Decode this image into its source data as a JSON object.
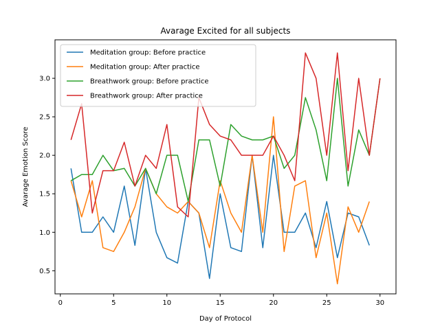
{
  "chart_data": {
    "type": "line",
    "title": "Avarage Excited for all subjects",
    "xlabel": "Day of Protocol",
    "ylabel": "Avarage Emotion Score",
    "xlim": [
      -0.5,
      31.5
    ],
    "ylim": [
      0.2,
      3.5
    ],
    "xticks": [
      0,
      5,
      10,
      15,
      20,
      25,
      30
    ],
    "yticks": [
      0.5,
      1.0,
      1.5,
      2.0,
      2.5,
      3.0
    ],
    "xtick_labels": [
      "0",
      "5",
      "10",
      "15",
      "20",
      "25",
      "30"
    ],
    "ytick_labels": [
      "0.5",
      "1.0",
      "1.5",
      "2.0",
      "2.5",
      "3.0"
    ],
    "grid": false,
    "legend_position": "top-left",
    "series": [
      {
        "name": "Meditation group: Before practice",
        "color": "#1f77b4",
        "x": [
          1,
          2,
          3,
          4,
          5,
          6,
          7,
          8,
          9,
          10,
          11,
          12,
          13,
          14,
          15,
          16,
          17,
          18,
          19,
          20,
          21,
          22,
          23,
          24,
          25,
          26,
          27,
          28,
          29
        ],
        "values": [
          1.83,
          1.0,
          1.0,
          1.2,
          1.0,
          1.6,
          0.83,
          1.83,
          1.0,
          0.67,
          0.6,
          1.4,
          1.25,
          0.4,
          1.5,
          0.8,
          0.75,
          2.0,
          0.8,
          2.0,
          1.0,
          1.0,
          1.25,
          0.8,
          1.4,
          0.67,
          1.25,
          1.2,
          0.83
        ]
      },
      {
        "name": "Meditation group: After practice",
        "color": "#ff7f0e",
        "x": [
          1,
          2,
          3,
          4,
          5,
          6,
          7,
          8,
          9,
          10,
          11,
          12,
          13,
          14,
          15,
          16,
          17,
          18,
          19,
          20,
          21,
          22,
          23,
          24,
          25,
          26,
          27,
          28,
          29
        ],
        "values": [
          1.67,
          1.2,
          1.67,
          0.8,
          0.75,
          1.0,
          1.33,
          1.83,
          1.5,
          1.33,
          1.25,
          1.4,
          1.25,
          0.8,
          1.67,
          1.25,
          1.0,
          2.0,
          1.0,
          2.5,
          0.75,
          1.6,
          1.67,
          0.67,
          1.25,
          0.33,
          1.33,
          1.0,
          1.4
        ]
      },
      {
        "name": "Breathwork group: Before practice",
        "color": "#2ca02c",
        "x": [
          1,
          2,
          3,
          4,
          5,
          6,
          7,
          8,
          9,
          10,
          11,
          12,
          13,
          14,
          15,
          16,
          17,
          18,
          19,
          20,
          21,
          22,
          23,
          24,
          25,
          26,
          27,
          28,
          29,
          30
        ],
        "values": [
          1.67,
          1.75,
          1.75,
          2.0,
          1.8,
          1.83,
          1.6,
          1.83,
          1.5,
          2.0,
          2.0,
          1.4,
          2.2,
          2.2,
          1.6,
          2.4,
          2.25,
          2.2,
          2.2,
          2.25,
          1.83,
          2.0,
          2.75,
          2.33,
          1.67,
          3.0,
          1.6,
          2.33,
          2.0,
          3.0
        ]
      },
      {
        "name": "Breathwork group: After practice",
        "color": "#d62728",
        "x": [
          1,
          2,
          3,
          4,
          5,
          6,
          7,
          8,
          9,
          10,
          11,
          12,
          13,
          14,
          15,
          16,
          17,
          18,
          19,
          20,
          21,
          22,
          23,
          24,
          25,
          26,
          27,
          28,
          29,
          30
        ],
        "values": [
          2.2,
          2.67,
          1.25,
          1.8,
          1.8,
          2.17,
          1.6,
          2.0,
          1.83,
          2.4,
          1.33,
          1.2,
          2.75,
          2.4,
          2.25,
          2.2,
          2.0,
          2.0,
          2.0,
          2.25,
          2.0,
          1.67,
          3.33,
          3.0,
          2.0,
          3.33,
          1.8,
          3.0,
          2.0,
          3.0
        ]
      }
    ]
  }
}
